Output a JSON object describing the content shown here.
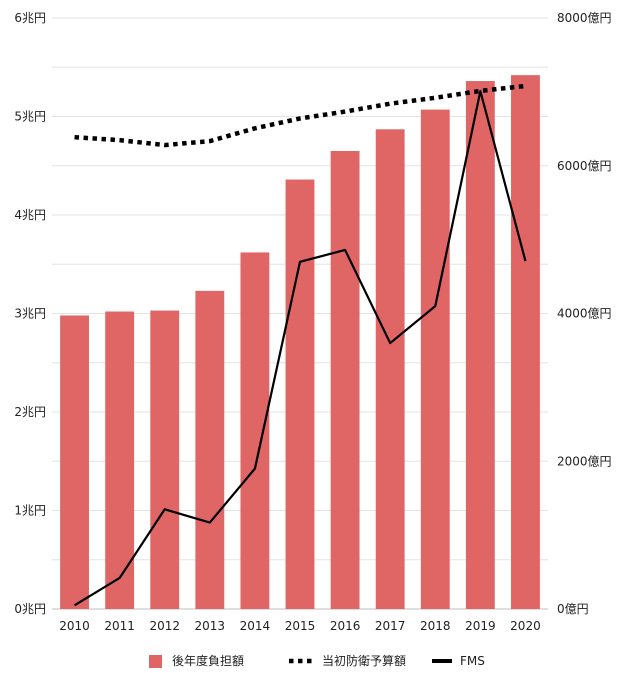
{
  "chart_data": {
    "type": "bar",
    "categories": [
      "2010",
      "2011",
      "2012",
      "2013",
      "2014",
      "2015",
      "2016",
      "2017",
      "2018",
      "2019",
      "2020"
    ],
    "y_left": {
      "range": [
        0,
        6
      ],
      "ticks": [
        0,
        1,
        2,
        3,
        4,
        5,
        6
      ],
      "tick_labels": [
        "0兆円",
        "1兆円",
        "2兆円",
        "3兆円",
        "4兆円",
        "5兆円",
        "6兆円"
      ]
    },
    "y_right": {
      "range": [
        0,
        8000
      ],
      "ticks": [
        0,
        2000,
        4000,
        6000,
        8000
      ],
      "tick_labels": [
        "0億円",
        "2000億円",
        "4000億円",
        "6000億円",
        "8000億円"
      ]
    },
    "grid": true,
    "legend_position": "bottom",
    "series": [
      {
        "name": "後年度負担額",
        "kind": "bar",
        "axis": "left",
        "unit": "兆円",
        "color": "#e06666",
        "values": [
          2.98,
          3.02,
          3.03,
          3.23,
          3.62,
          4.36,
          4.65,
          4.87,
          5.07,
          5.36,
          5.42
        ]
      },
      {
        "name": "当初防衛予算額",
        "kind": "line",
        "style": "dotted",
        "axis": "left",
        "unit": "兆円",
        "color": "#000000",
        "values": [
          4.79,
          4.76,
          4.71,
          4.75,
          4.88,
          4.98,
          5.05,
          5.13,
          5.19,
          5.26,
          5.31
        ]
      },
      {
        "name": "FMS",
        "kind": "line",
        "style": "solid",
        "axis": "right",
        "unit": "億円",
        "color": "#000000",
        "values": [
          50,
          420,
          1350,
          1170,
          1900,
          4700,
          4860,
          3600,
          4100,
          7010,
          4710
        ]
      }
    ]
  }
}
